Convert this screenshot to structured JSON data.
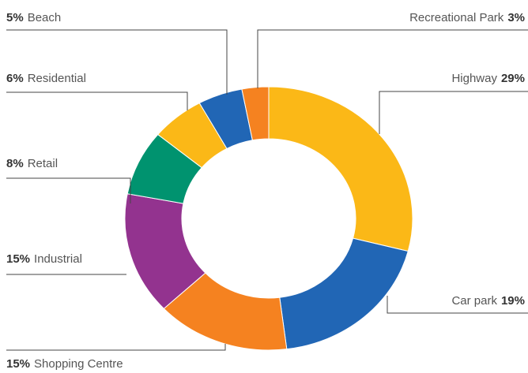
{
  "chart_data": {
    "type": "pie",
    "categories": [
      "Highway",
      "Car park",
      "Shopping Centre",
      "Industrial",
      "Retail",
      "Residential",
      "Beach",
      "Recreational Park"
    ],
    "values": [
      29,
      19,
      15,
      15,
      8,
      6,
      5,
      3
    ],
    "value_labels": [
      "29%",
      "19%",
      "15%",
      "15%",
      "8%",
      "6%",
      "5%",
      "3%"
    ],
    "colors": [
      "#fbb817",
      "#2166b5",
      "#f58220",
      "#93338f",
      "#00936f",
      "#fbb817",
      "#2166b5",
      "#f58220"
    ]
  }
}
